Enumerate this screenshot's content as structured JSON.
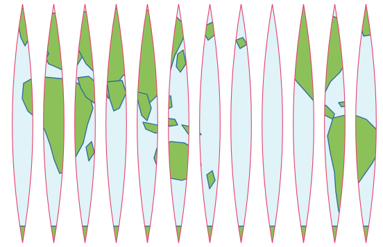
{
  "map": {
    "projection": "interrupted-sinusoidal-gores",
    "gore_count": 12,
    "colors": {
      "ocean": "#dff3f8",
      "land": "#8cc15a",
      "coastline": "#2f6f9a",
      "gore_outline": "#e5406b",
      "background": "#ffffff"
    }
  }
}
